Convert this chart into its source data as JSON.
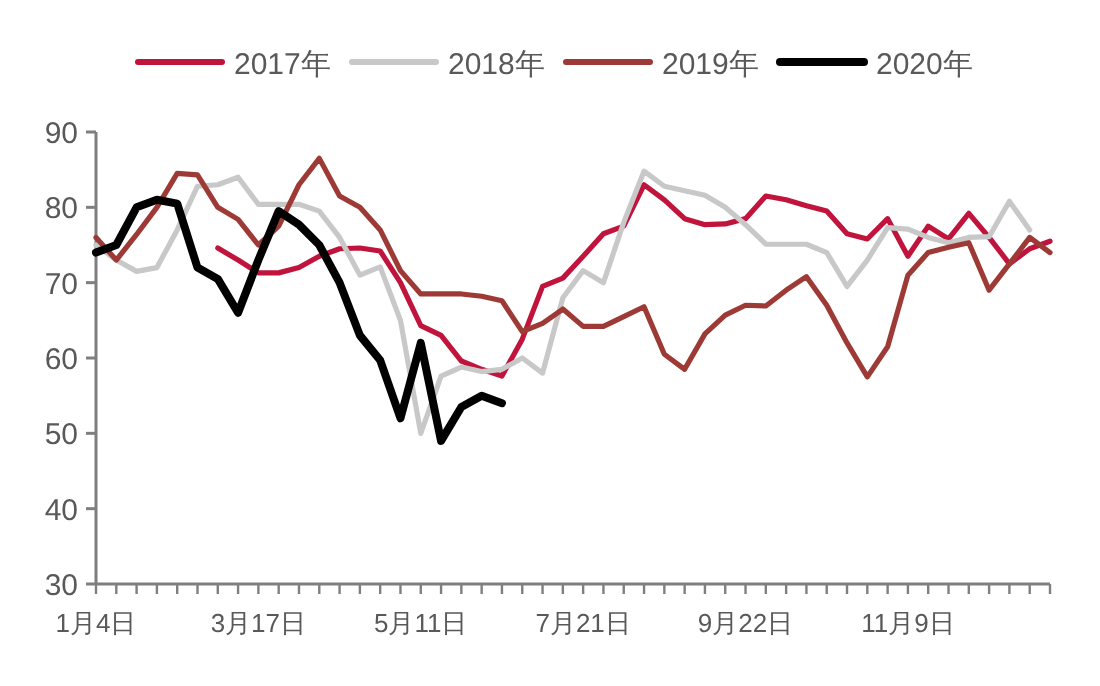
{
  "chart_data": {
    "type": "line",
    "categories": [
      "1月4日",
      null,
      null,
      null,
      null,
      null,
      null,
      null,
      "3月17日",
      null,
      null,
      null,
      null,
      null,
      null,
      null,
      "5月11日",
      null,
      null,
      null,
      null,
      null,
      null,
      null,
      "7月21日",
      null,
      null,
      null,
      null,
      null,
      null,
      null,
      "9月22日",
      null,
      null,
      null,
      null,
      null,
      null,
      null,
      "11月9日",
      null,
      null,
      null,
      null,
      null,
      null,
      null
    ],
    "series": [
      {
        "name": "2017年",
        "color": "#c0143c",
        "values": [
          null,
          null,
          null,
          null,
          null,
          null,
          74.6,
          73,
          71.3,
          71.3,
          72,
          73.5,
          74.5,
          74.6,
          74.2,
          70,
          64.3,
          63,
          59.6,
          58.5,
          57.6,
          62.5,
          69.5,
          70.6,
          73.5,
          76.5,
          77.5,
          83,
          81,
          78.5,
          77.7,
          77.8,
          78.5,
          81.5,
          81,
          80.2,
          79.5,
          76.5,
          75.8,
          78.5,
          73.5,
          77.5,
          75.8,
          79.2,
          76,
          72.5,
          74.5,
          75.5
        ]
      },
      {
        "name": "2018年",
        "color": "#c8c8c8",
        "values": [
          75,
          73,
          71.5,
          72,
          77,
          82.8,
          83,
          84,
          80.4,
          80.4,
          80.4,
          79.5,
          76,
          71,
          72.1,
          65,
          50,
          57.6,
          58.8,
          58.2,
          58.5,
          60,
          58,
          68,
          71.6,
          70,
          78,
          84.8,
          82.8,
          82.2,
          81.6,
          80,
          77.7,
          75.1,
          75.1,
          75.1,
          74,
          69.5,
          73,
          77.3,
          77.1,
          76,
          75.3,
          76,
          76.1,
          80.8,
          77,
          null
        ]
      },
      {
        "name": "2019年",
        "color": "#9e3a36",
        "values": [
          76,
          73,
          76.4,
          80,
          84.5,
          84.3,
          80,
          78.4,
          75,
          77.5,
          83,
          86.5,
          81.5,
          80,
          77,
          71.6,
          68.5,
          68.5,
          68.5,
          68.2,
          67.6,
          63.5,
          64.6,
          66.5,
          64.2,
          64.2,
          65.5,
          66.8,
          60.5,
          58.5,
          63.2,
          65.7,
          67,
          66.9,
          69,
          70.8,
          67,
          62,
          57.5,
          61.5,
          71,
          74,
          74.7,
          75.3,
          69,
          72.5,
          76,
          74
        ]
      },
      {
        "name": "2020年",
        "color": "#000000",
        "values": [
          74,
          75,
          80,
          81,
          80.5,
          72,
          70.5,
          66,
          73,
          79.5,
          77.7,
          75,
          70,
          63,
          59.7,
          52,
          62,
          49,
          53.5,
          55,
          54,
          null,
          null,
          null,
          null,
          null,
          null,
          null,
          null,
          null,
          null,
          null,
          null,
          null,
          null,
          null,
          null,
          null,
          null,
          null,
          null,
          null,
          null,
          null,
          null,
          null,
          null,
          null
        ]
      }
    ],
    "ylim": [
      30,
      90
    ],
    "yticks": [
      30,
      40,
      50,
      60,
      70,
      80,
      90
    ],
    "grid": false,
    "legend": "top",
    "marker": "none",
    "line_style": "solid"
  }
}
